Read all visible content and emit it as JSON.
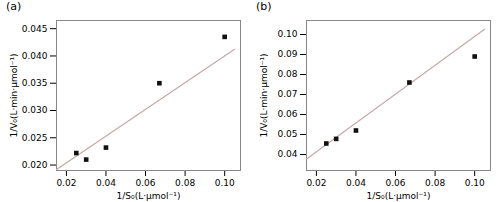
{
  "chart_data": [
    {
      "type": "scatter",
      "title": "(a)",
      "xlabel": "1/S₀(L·μmol⁻¹)",
      "ylabel": "1/V₀(L·min·μmol⁻¹)",
      "series": [
        {
          "type": "line",
          "color": "#c8a8a8",
          "x": [
            0.015,
            0.105
          ],
          "values": [
            0.019175,
            0.041225
          ]
        },
        {
          "type": "scatter",
          "color": "#111111",
          "marker": "square",
          "x": [
            0.025,
            0.03,
            0.04,
            0.067,
            0.1
          ],
          "values": [
            0.0222,
            0.021,
            0.0232,
            0.035,
            0.0435
          ]
        }
      ],
      "xlim": [
        0.015,
        0.108
      ],
      "ylim": [
        0.019,
        0.0465
      ],
      "xticks": [
        0.02,
        0.04,
        0.06,
        0.08,
        {
          "value": 0.1,
          "label": "0.10"
        }
      ],
      "yticks": [
        {
          "value": 0.02,
          "label": "0.020"
        },
        0.025,
        {
          "value": 0.03,
          "label": "0.030"
        },
        0.035,
        {
          "value": 0.04,
          "label": "0.040"
        },
        0.045
      ]
    },
    {
      "type": "scatter",
      "title": "(b)",
      "xlabel": "1/S₀(L·μmol⁻¹)",
      "ylabel": "1/V₀(L·min·μmol⁻¹)",
      "series": [
        {
          "type": "line",
          "color": "#c8a8a8",
          "x": [
            0.015,
            0.105
          ],
          "values": [
            0.0378,
            0.1026
          ]
        },
        {
          "type": "scatter",
          "color": "#111111",
          "marker": "square",
          "x": [
            0.025,
            0.03,
            0.04,
            0.067,
            0.1
          ],
          "values": [
            0.0455,
            0.0478,
            0.052,
            0.076,
            0.089
          ]
        }
      ],
      "xlim": [
        0.015,
        0.108
      ],
      "ylim": [
        0.032,
        0.107
      ],
      "xticks": [
        0.02,
        0.04,
        0.06,
        0.08,
        {
          "value": 0.1,
          "label": "0.10"
        }
      ],
      "yticks": [
        0.04,
        0.05,
        0.06,
        0.07,
        0.08,
        0.09,
        {
          "value": 0.1,
          "label": "0.10"
        }
      ]
    }
  ]
}
